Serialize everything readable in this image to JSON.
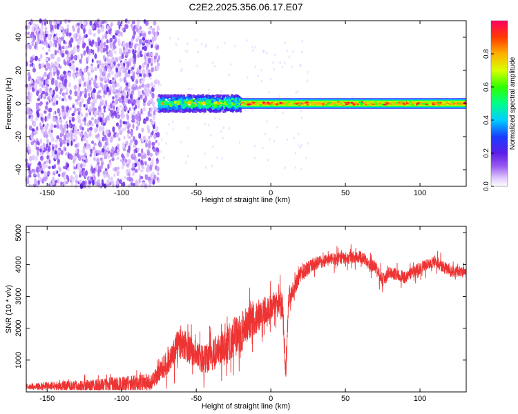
{
  "chart_data": [
    {
      "type": "heatmap",
      "title": "C2E2.2025.356.06.17.E07",
      "xlabel": "Height of straight line (km)",
      "ylabel": "Frequency (Hz)",
      "xlim": [
        -164,
        131
      ],
      "ylim": [
        -50,
        50
      ],
      "xticks": [
        -150,
        -100,
        -50,
        0,
        50,
        100
      ],
      "yticks": [
        -40,
        -20,
        0,
        20,
        40
      ],
      "colorbar": {
        "label": "Normalized spectral amplitude",
        "range": [
          0,
          1
        ],
        "ticks": [
          "0.0",
          "0.2",
          "0.4",
          "0.6",
          "0.8"
        ]
      },
      "regions": [
        {
          "name": "noise",
          "x": [
            -164,
            -75
          ],
          "freq_span": [
            -50,
            50
          ],
          "amplitude": "low, scattered (0.05-0.2)"
        },
        {
          "name": "broadband band",
          "x": [
            -75,
            -20
          ],
          "center_freq": 0,
          "half_width": 5,
          "amplitude": "0.3-0.7"
        },
        {
          "name": "narrow band",
          "x": [
            -20,
            131
          ],
          "center_freq": 0,
          "half_width": 2,
          "amplitude": "0.6-1.0"
        }
      ]
    },
    {
      "type": "line",
      "xlabel": "Height of straight line (km)",
      "ylabel": "SNR (10 * v/v)",
      "xlim": [
        -164,
        131
      ],
      "ylim": [
        0,
        5200
      ],
      "xticks": [
        -150,
        -100,
        -50,
        0,
        50,
        100
      ],
      "yticks": [
        1000,
        2000,
        3000,
        4000,
        5000
      ],
      "series": [
        {
          "name": "SNR",
          "color": "#ee3333",
          "x": [
            -164,
            -150,
            -120,
            -100,
            -80,
            -75,
            -70,
            -65,
            -60,
            -55,
            -50,
            -45,
            -40,
            -35,
            -30,
            -25,
            -20,
            -15,
            -10,
            -5,
            0,
            5,
            8,
            10,
            12,
            15,
            20,
            30,
            40,
            50,
            60,
            70,
            75,
            80,
            90,
            100,
            110,
            120,
            131
          ],
          "y": [
            170,
            180,
            200,
            230,
            300,
            600,
            900,
            1300,
            1500,
            1400,
            1200,
            1000,
            1150,
            1300,
            1450,
            1700,
            1900,
            2200,
            2300,
            2500,
            2700,
            2900,
            2500,
            600,
            2900,
            3200,
            3700,
            4050,
            4150,
            4200,
            4250,
            3900,
            3500,
            3750,
            3600,
            3900,
            4100,
            3800,
            3750
          ],
          "band": [
            160,
            250,
            350,
            500,
            500,
            550,
            800,
            900,
            1000,
            900,
            800,
            800,
            900,
            1000,
            1100,
            1200,
            1200,
            1000,
            900,
            800,
            700,
            700,
            1000,
            500,
            600,
            500,
            450,
            400,
            380,
            350,
            350,
            400,
            400,
            350,
            350,
            350,
            350,
            350,
            300
          ]
        }
      ]
    }
  ]
}
